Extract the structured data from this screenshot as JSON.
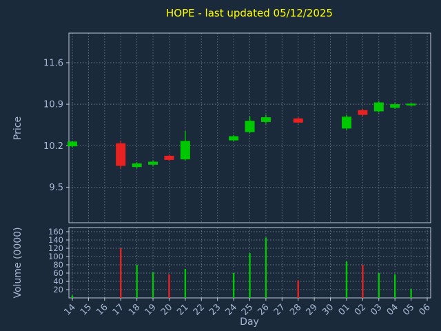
{
  "colors": {
    "background": "#1b2a3a",
    "title": "#ffff00",
    "tick_label": "#a8b8d4",
    "axis_label": "#a8b8d4",
    "grid": "#8494a6",
    "spine": "#c2cbd8",
    "up": "#00c800",
    "down": "#e62222"
  },
  "chart_data": [
    {
      "type": "candlestick",
      "title": "HOPE - last updated 05/12/2025",
      "xlabel": "Day",
      "ylabel": "Price",
      "x_ticks": [
        "14",
        "15",
        "16",
        "17",
        "18",
        "19",
        "20",
        "21",
        "22",
        "23",
        "24",
        "25",
        "26",
        "27",
        "28",
        "29",
        "30",
        "01",
        "02",
        "03",
        "04",
        "05",
        "06"
      ],
      "y_ticks": [
        9.5,
        10.2,
        10.9,
        11.6
      ],
      "ylim": [
        8.9,
        12.1
      ],
      "grid": "dotted",
      "candles": [
        {
          "day": "14",
          "open": 10.19,
          "high": 10.28,
          "low": 10.17,
          "close": 10.27
        },
        {
          "day": "17",
          "open": 10.24,
          "high": 10.28,
          "low": 9.82,
          "close": 9.86
        },
        {
          "day": "18",
          "open": 9.84,
          "high": 9.92,
          "low": 9.82,
          "close": 9.9
        },
        {
          "day": "19",
          "open": 9.88,
          "high": 9.95,
          "low": 9.86,
          "close": 9.93
        },
        {
          "day": "20",
          "open": 10.03,
          "high": 10.05,
          "low": 9.94,
          "close": 9.96
        },
        {
          "day": "21",
          "open": 9.97,
          "high": 10.45,
          "low": 9.95,
          "close": 10.28
        },
        {
          "day": "24",
          "open": 10.29,
          "high": 10.38,
          "low": 10.27,
          "close": 10.36
        },
        {
          "day": "25",
          "open": 10.43,
          "high": 10.7,
          "low": 10.41,
          "close": 10.62
        },
        {
          "day": "26",
          "open": 10.6,
          "high": 10.72,
          "low": 10.57,
          "close": 10.68
        },
        {
          "day": "28",
          "open": 10.66,
          "high": 10.68,
          "low": 10.57,
          "close": 10.59
        },
        {
          "day": "01",
          "open": 10.49,
          "high": 10.72,
          "low": 10.47,
          "close": 10.69
        },
        {
          "day": "02",
          "open": 10.8,
          "high": 10.82,
          "low": 10.7,
          "close": 10.72
        },
        {
          "day": "03",
          "open": 10.78,
          "high": 10.95,
          "low": 10.76,
          "close": 10.93
        },
        {
          "day": "04",
          "open": 10.84,
          "high": 10.92,
          "low": 10.82,
          "close": 10.9
        },
        {
          "day": "05",
          "open": 10.88,
          "high": 10.92,
          "low": 10.86,
          "close": 10.91
        }
      ]
    },
    {
      "type": "bar",
      "ylabel": "Volume (0000)",
      "y_ticks": [
        20,
        40,
        60,
        80,
        100,
        120,
        140,
        160
      ],
      "ylim": [
        0,
        170
      ],
      "bars": [
        {
          "day": "14",
          "value": 6,
          "dir": "up"
        },
        {
          "day": "17",
          "value": 120,
          "dir": "down"
        },
        {
          "day": "18",
          "value": 80,
          "dir": "up"
        },
        {
          "day": "19",
          "value": 62,
          "dir": "up"
        },
        {
          "day": "20",
          "value": 57,
          "dir": "down"
        },
        {
          "day": "21",
          "value": 70,
          "dir": "up"
        },
        {
          "day": "24",
          "value": 60,
          "dir": "up"
        },
        {
          "day": "25",
          "value": 108,
          "dir": "up"
        },
        {
          "day": "26",
          "value": 146,
          "dir": "up"
        },
        {
          "day": "28",
          "value": 42,
          "dir": "down"
        },
        {
          "day": "01",
          "value": 88,
          "dir": "up"
        },
        {
          "day": "02",
          "value": 80,
          "dir": "down"
        },
        {
          "day": "03",
          "value": 60,
          "dir": "up"
        },
        {
          "day": "04",
          "value": 57,
          "dir": "up"
        },
        {
          "day": "05",
          "value": 22,
          "dir": "up"
        }
      ]
    }
  ]
}
